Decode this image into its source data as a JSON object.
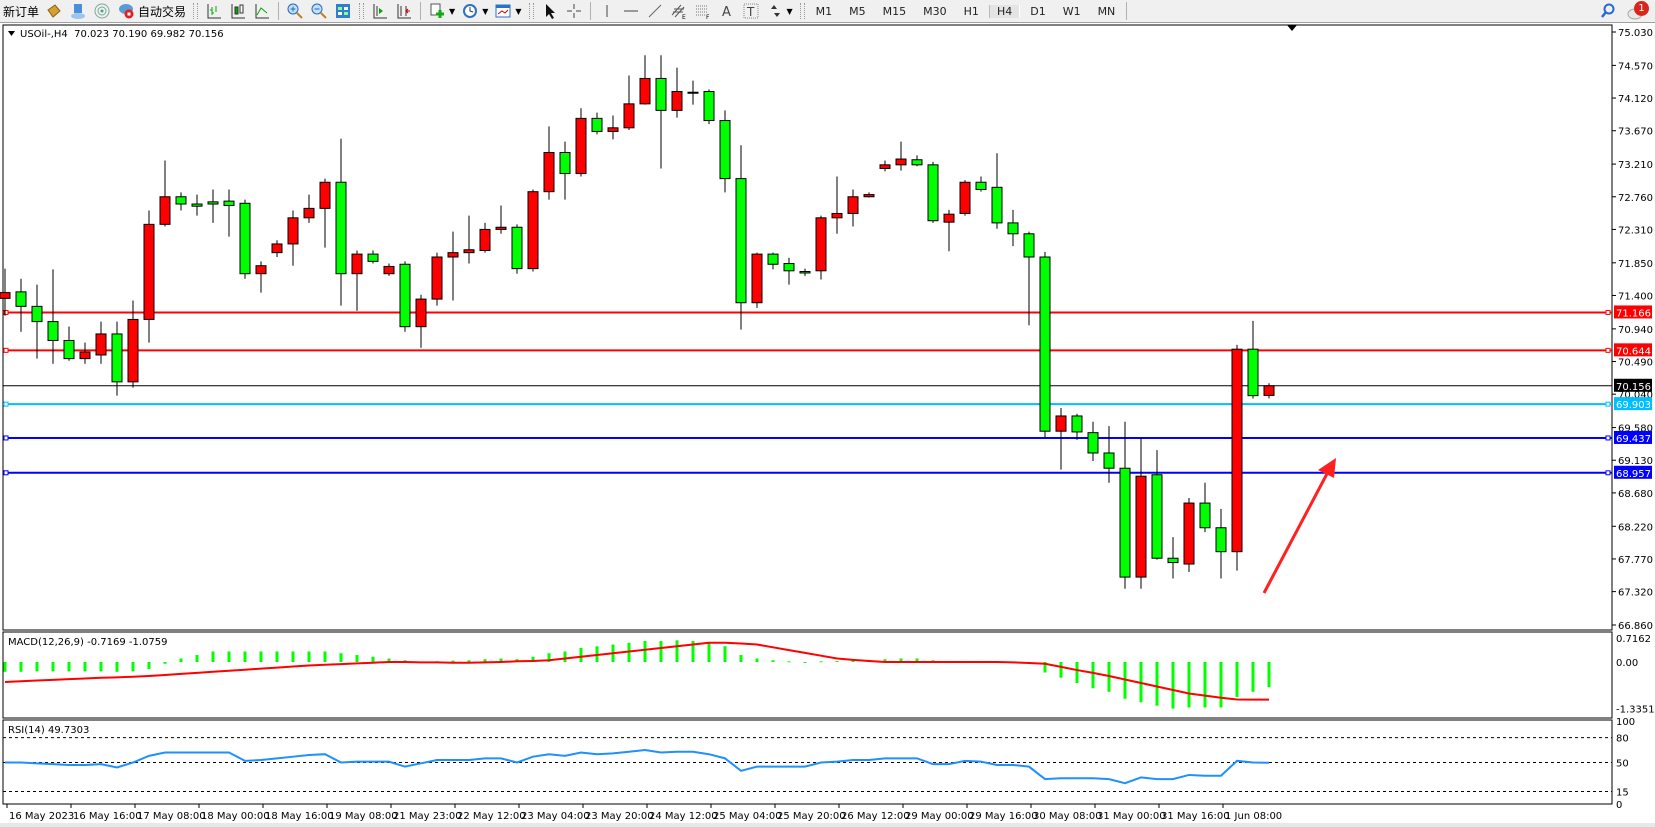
{
  "toolbar": {
    "new_order": "新订单",
    "auto_trading": "自动交易",
    "timeframes": [
      "M1",
      "M5",
      "M15",
      "M30",
      "H1",
      "H4",
      "D1",
      "W1",
      "MN"
    ],
    "active_timeframe": "H4",
    "notification_count": "1",
    "icons": [
      "chest-icon",
      "server-cloud-icon",
      "signal-icon",
      "auto-trading-icon",
      "bar-chart-icon",
      "candlestick-icon",
      "line-chart-icon",
      "zoom-in-icon",
      "zoom-out-icon",
      "tile-windows-icon",
      "chart-shift-icon",
      "autoscroll-icon",
      "new-chart-icon",
      "clock-icon",
      "templates-icon",
      "cursor-icon",
      "crosshair-icon",
      "vertical-line-icon",
      "horizontal-line-icon",
      "trendline-icon",
      "equidistant-channel-icon",
      "fibonacci-icon",
      "text-icon",
      "text-label-icon",
      "arrows-icon",
      "search-icon",
      "chat-icon"
    ]
  },
  "chart": {
    "info": "USOil-,H4  70.023 70.190 69.982 70.156",
    "symbol": "USOil-",
    "period": "H4",
    "ohlc_last": {
      "open": 70.023,
      "high": 70.19,
      "low": 69.982,
      "close": 70.156
    },
    "bull_color": "#ff0000",
    "bear_color": "#00ff00"
  },
  "chart_data": [
    {
      "type": "candlestick",
      "title": "USOil-,H4",
      "ylim": [
        66.86,
        75.03
      ],
      "y_ticks": [
        "75.030",
        "74.570",
        "74.120",
        "73.670",
        "73.210",
        "72.760",
        "72.310",
        "71.850",
        "71.400",
        "70.940",
        "70.490",
        "70.040",
        "69.580",
        "69.130",
        "68.680",
        "68.220",
        "67.770",
        "67.320",
        "66.860"
      ],
      "x_tick_labels": [
        "16 May 2023",
        "16 May 16:00",
        "17 May 08:00",
        "18 May 00:00",
        "18 May 16:00",
        "19 May 08:00",
        "21 May 23:00",
        "22 May 12:00",
        "23 May 04:00",
        "23 May 20:00",
        "24 May 12:00",
        "25 May 04:00",
        "25 May 20:00",
        "26 May 12:00",
        "29 May 00:00",
        "29 May 16:00",
        "30 May 08:00",
        "31 May 00:00",
        "31 May 16:00",
        "1 Jun 08:00"
      ],
      "ohlc": [
        [
          71.36,
          71.77,
          71.12,
          71.44
        ],
        [
          71.45,
          71.63,
          70.9,
          71.25
        ],
        [
          71.25,
          71.55,
          70.53,
          71.04
        ],
        [
          71.04,
          71.76,
          70.46,
          70.78
        ],
        [
          70.78,
          70.97,
          70.5,
          70.53
        ],
        [
          70.53,
          70.75,
          70.46,
          70.62
        ],
        [
          70.58,
          71.04,
          70.46,
          70.87
        ],
        [
          70.87,
          71.04,
          70.02,
          70.21
        ],
        [
          70.21,
          71.33,
          70.13,
          71.07
        ],
        [
          71.07,
          72.57,
          70.75,
          72.38
        ],
        [
          72.38,
          73.26,
          72.35,
          72.76
        ],
        [
          72.76,
          72.82,
          72.57,
          72.66
        ],
        [
          72.66,
          72.79,
          72.5,
          72.63
        ],
        [
          72.69,
          72.86,
          72.4,
          72.66
        ],
        [
          72.7,
          72.86,
          72.21,
          72.64
        ],
        [
          72.67,
          72.72,
          71.63,
          71.7
        ],
        [
          71.7,
          71.87,
          71.44,
          71.81
        ],
        [
          71.99,
          72.16,
          71.93,
          72.11
        ],
        [
          72.11,
          72.57,
          71.81,
          72.47
        ],
        [
          72.47,
          72.79,
          72.4,
          72.6
        ],
        [
          72.6,
          73.01,
          72.06,
          72.96
        ],
        [
          72.96,
          73.56,
          71.26,
          71.7
        ],
        [
          71.7,
          72.02,
          71.19,
          71.97
        ],
        [
          71.97,
          72.02,
          71.84,
          71.87
        ],
        [
          71.7,
          71.84,
          71.67,
          71.8
        ],
        [
          71.83,
          71.87,
          70.9,
          70.97
        ],
        [
          70.97,
          71.41,
          70.68,
          71.35
        ],
        [
          71.35,
          71.99,
          71.26,
          71.93
        ],
        [
          71.93,
          72.28,
          71.33,
          71.99
        ],
        [
          71.99,
          72.5,
          71.84,
          72.03
        ],
        [
          72.02,
          72.4,
          71.99,
          72.31
        ],
        [
          72.31,
          72.64,
          72.25,
          72.34
        ],
        [
          72.34,
          72.38,
          71.7,
          71.77
        ],
        [
          71.77,
          72.86,
          71.73,
          72.83
        ],
        [
          72.83,
          73.73,
          72.72,
          73.37
        ],
        [
          73.37,
          73.52,
          72.72,
          73.08
        ],
        [
          73.08,
          73.98,
          73.04,
          73.84
        ],
        [
          73.84,
          73.92,
          73.62,
          73.66
        ],
        [
          73.66,
          73.88,
          73.55,
          73.71
        ],
        [
          73.71,
          74.43,
          73.68,
          74.04
        ],
        [
          74.04,
          74.71,
          74.03,
          74.39
        ],
        [
          74.39,
          74.71,
          73.15,
          73.95
        ],
        [
          73.95,
          74.54,
          73.85,
          74.21
        ],
        [
          74.2,
          74.36,
          74.03,
          74.19
        ],
        [
          74.21,
          74.24,
          73.76,
          73.81
        ],
        [
          73.81,
          73.95,
          72.82,
          73.01
        ],
        [
          73.01,
          73.47,
          70.93,
          71.3
        ],
        [
          71.3,
          71.99,
          71.23,
          71.97
        ],
        [
          71.97,
          71.99,
          71.76,
          71.83
        ],
        [
          71.84,
          71.92,
          71.55,
          71.74
        ],
        [
          71.73,
          71.77,
          71.67,
          71.71
        ],
        [
          71.74,
          72.5,
          71.62,
          72.47
        ],
        [
          72.47,
          73.04,
          72.25,
          72.53
        ],
        [
          72.53,
          72.86,
          72.35,
          72.76
        ],
        [
          72.76,
          72.82,
          72.75,
          72.79
        ],
        [
          73.15,
          73.26,
          73.11,
          73.2
        ],
        [
          73.2,
          73.52,
          73.12,
          73.28
        ],
        [
          73.27,
          73.33,
          73.18,
          73.2
        ],
        [
          73.2,
          73.24,
          72.4,
          72.43
        ],
        [
          72.41,
          72.58,
          72.01,
          72.52
        ],
        [
          72.53,
          72.99,
          72.5,
          72.96
        ],
        [
          72.96,
          73.04,
          72.83,
          72.86
        ],
        [
          72.89,
          73.36,
          72.32,
          72.4
        ],
        [
          72.4,
          72.58,
          72.08,
          72.25
        ],
        [
          72.25,
          72.28,
          70.99,
          71.93
        ],
        [
          71.93,
          72.0,
          69.45,
          69.53
        ],
        [
          69.53,
          69.85,
          69.0,
          69.74
        ],
        [
          69.74,
          69.77,
          69.41,
          69.52
        ],
        [
          69.51,
          69.66,
          69.12,
          69.23
        ],
        [
          69.23,
          69.6,
          68.82,
          69.02
        ],
        [
          69.02,
          69.66,
          67.36,
          67.52
        ],
        [
          67.52,
          69.44,
          67.36,
          68.91
        ],
        [
          68.93,
          69.27,
          67.76,
          67.78
        ],
        [
          67.78,
          68.07,
          67.5,
          67.72
        ],
        [
          67.7,
          68.61,
          67.59,
          68.54
        ],
        [
          68.54,
          68.82,
          68.14,
          68.2
        ],
        [
          68.2,
          68.46,
          67.5,
          67.87
        ],
        [
          67.87,
          70.72,
          67.61,
          70.66
        ],
        [
          70.66,
          71.05,
          69.98,
          70.02
        ],
        [
          70.023,
          70.19,
          69.982,
          70.156
        ]
      ],
      "horizontal_lines": [
        {
          "price": "71.166",
          "color": "#ff0000"
        },
        {
          "price": "70.644",
          "color": "#ff0000"
        },
        {
          "price": "69.903",
          "color": "#00bfff"
        },
        {
          "price": "69.437",
          "color": "#0000ff"
        },
        {
          "price": "68.957",
          "color": "#0000ff"
        }
      ],
      "current_price": {
        "price": "70.156",
        "color": "#000000"
      },
      "annotation": {
        "type": "arrow",
        "color": "#ff0000",
        "direction": "up-right"
      }
    },
    {
      "type": "bar+line",
      "title": "MACD(12,26,9) -0.7169 -1.0759",
      "y_ticks": [
        "0.7162",
        "0.00",
        "-1.3351"
      ],
      "ylim": [
        -1.3351,
        0.7162
      ],
      "histogram_color": "#00ff00",
      "signal_color": "#ff0000",
      "macd": [
        -0.28,
        -0.28,
        -0.27,
        -0.27,
        -0.27,
        -0.27,
        -0.27,
        -0.28,
        -0.27,
        -0.2,
        -0.05,
        0.1,
        0.2,
        0.3,
        0.3,
        0.3,
        0.3,
        0.3,
        0.3,
        0.3,
        0.3,
        0.25,
        0.2,
        0.15,
        0.1,
        0.05,
        0.0,
        0.02,
        0.04,
        0.05,
        0.08,
        0.1,
        0.08,
        0.15,
        0.25,
        0.3,
        0.4,
        0.45,
        0.5,
        0.55,
        0.6,
        0.6,
        0.62,
        0.6,
        0.55,
        0.45,
        0.2,
        0.1,
        0.05,
        0.02,
        0.0,
        0.02,
        0.03,
        0.05,
        0.06,
        0.08,
        0.1,
        0.1,
        0.05,
        0.03,
        0.03,
        0.03,
        0.02,
        0.0,
        -0.05,
        -0.3,
        -0.45,
        -0.6,
        -0.75,
        -0.85,
        -1.05,
        -1.15,
        -1.25,
        -1.33,
        -1.3,
        -1.3,
        -1.3,
        -1.0,
        -0.85,
        -0.7169
      ],
      "signal": [
        -0.57,
        -0.55,
        -0.53,
        -0.51,
        -0.49,
        -0.47,
        -0.45,
        -0.44,
        -0.42,
        -0.4,
        -0.37,
        -0.34,
        -0.31,
        -0.28,
        -0.25,
        -0.22,
        -0.19,
        -0.16,
        -0.13,
        -0.1,
        -0.08,
        -0.06,
        -0.04,
        -0.02,
        0.0,
        0.0,
        -0.01,
        -0.01,
        -0.02,
        -0.02,
        -0.01,
        0.0,
        0.02,
        0.03,
        0.05,
        0.1,
        0.15,
        0.2,
        0.25,
        0.3,
        0.35,
        0.4,
        0.45,
        0.5,
        0.55,
        0.55,
        0.53,
        0.5,
        0.42,
        0.34,
        0.26,
        0.18,
        0.1,
        0.06,
        0.03,
        0.0,
        0.0,
        0.0,
        0.0,
        0.0,
        0.0,
        0.0,
        0.0,
        -0.01,
        -0.03,
        -0.05,
        -0.14,
        -0.23,
        -0.31,
        -0.4,
        -0.5,
        -0.6,
        -0.7,
        -0.8,
        -0.9,
        -0.96,
        -1.02,
        -1.07,
        -1.075,
        -1.0759
      ]
    },
    {
      "type": "line",
      "title": "RSI(14) 49.7303",
      "y_ticks": [
        "100",
        "80",
        "50",
        "15",
        "0"
      ],
      "levels": [
        80,
        50,
        15
      ],
      "ylim": [
        0,
        100
      ],
      "color": "#1e90ff",
      "values": [
        50,
        50,
        49,
        48,
        47,
        47,
        48,
        44,
        50,
        58,
        62,
        62,
        62,
        62,
        62,
        52,
        53,
        55,
        57,
        59,
        60,
        50,
        51,
        51,
        51,
        45,
        49,
        53,
        53,
        53,
        55,
        55,
        50,
        57,
        60,
        58,
        62,
        60,
        61,
        63,
        65,
        62,
        63,
        63,
        60,
        55,
        40,
        45,
        45,
        45,
        45,
        50,
        51,
        53,
        53,
        55,
        55,
        55,
        48,
        48,
        52,
        51,
        47,
        47,
        45,
        30,
        31,
        31,
        31,
        30,
        25,
        32,
        30,
        30,
        35,
        34,
        34,
        52,
        50,
        49.73
      ]
    }
  ]
}
